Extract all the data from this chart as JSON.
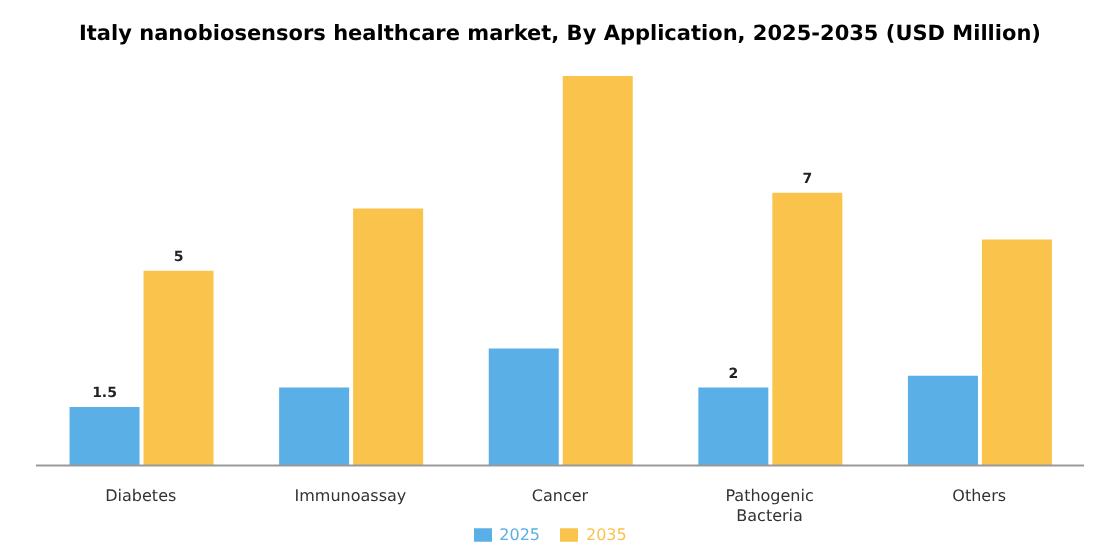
{
  "chart_data": {
    "type": "bar",
    "title": "Italy nanobiosensors healthcare market, By Application, 2025-2035 (USD Million)",
    "categories": [
      "Diabetes",
      "Immunoassay",
      "Cancer",
      "Pathogenic Bacteria",
      "Others"
    ],
    "series": [
      {
        "name": "2025",
        "color": "#5aafe6",
        "values": [
          1.5,
          2.0,
          3.0,
          2,
          2.3
        ],
        "value_labels": [
          "1.5",
          null,
          null,
          "2",
          null
        ]
      },
      {
        "name": "2035",
        "color": "#f9c34c",
        "values": [
          5,
          6.6,
          10,
          7,
          5.8
        ],
        "value_labels": [
          "5",
          null,
          null,
          "7",
          null
        ]
      }
    ],
    "legend": "bottom",
    "grid": false,
    "tick_labels": "x"
  }
}
